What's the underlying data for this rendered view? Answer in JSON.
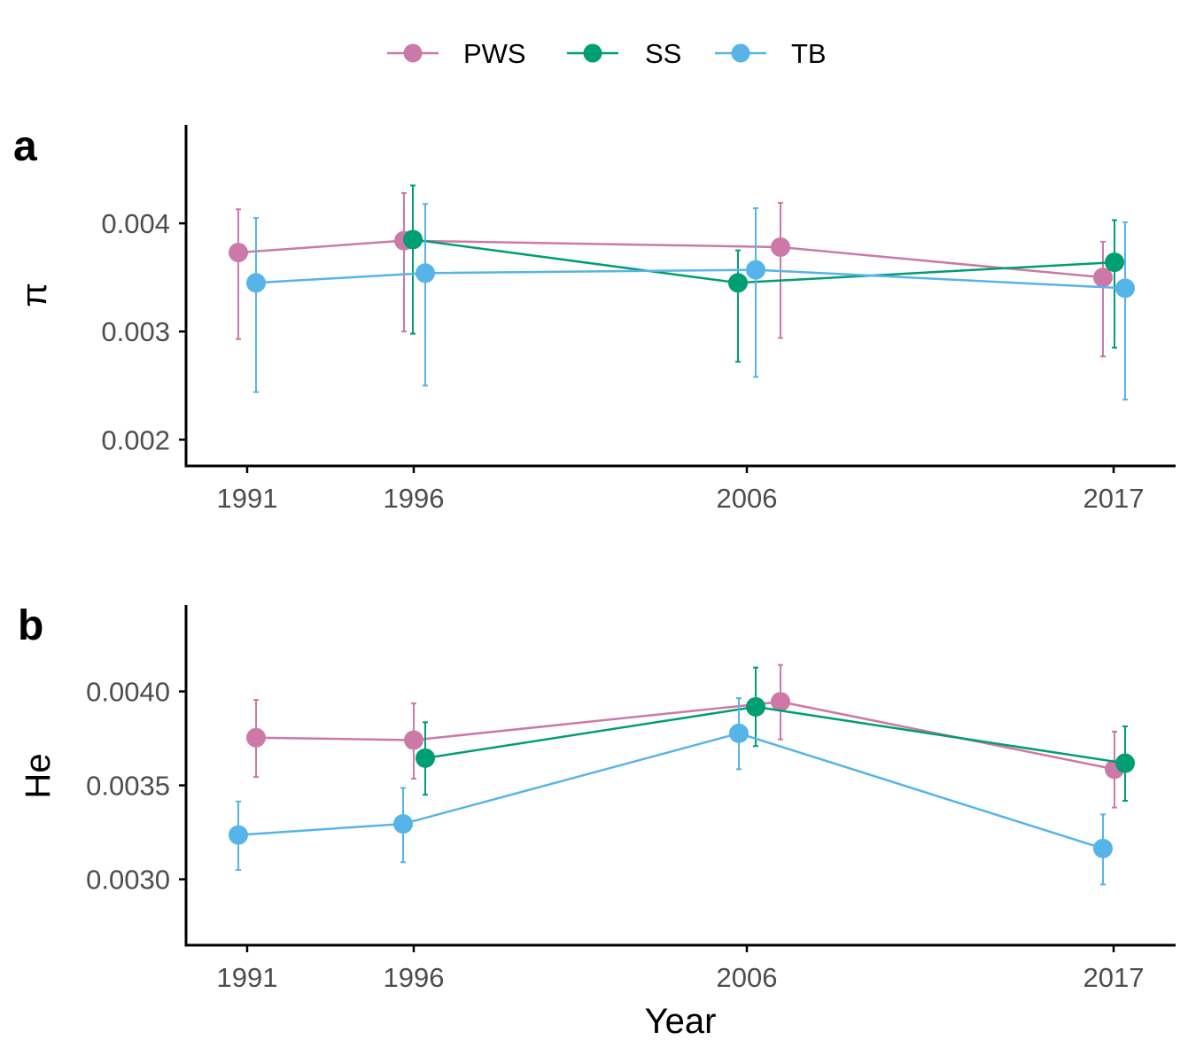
{
  "legend": {
    "items": [
      {
        "name": "PWS",
        "color": "#CC79A7"
      },
      {
        "name": "SS",
        "color": "#009E73"
      },
      {
        "name": "TB",
        "color": "#56B4E9"
      }
    ]
  },
  "chart_data": [
    {
      "panel_label": "a",
      "type": "line",
      "xlabel": "",
      "ylabel": "π",
      "x_ticks": [
        1991,
        1996,
        2006,
        2017
      ],
      "ylim": [
        0.00188,
        0.00491
      ],
      "y_ticks": [
        "0.002",
        "0.003",
        "0.004"
      ],
      "y_tick_values": [
        0.002,
        0.003,
        0.004
      ],
      "series": [
        {
          "name": "PWS",
          "color": "#CC79A7",
          "points": [
            {
              "x": 1991,
              "y": 0.00373,
              "lo": 0.00293,
              "hi": 0.00413
            },
            {
              "x": 1996,
              "y": 0.00384,
              "lo": 0.003,
              "hi": 0.00428
            },
            {
              "x": 2006,
              "y": 0.00378,
              "lo": 0.00294,
              "hi": 0.00419
            },
            {
              "x": 2017,
              "y": 0.0035,
              "lo": 0.00277,
              "hi": 0.00383
            }
          ]
        },
        {
          "name": "SS",
          "color": "#009E73",
          "points": [
            {
              "x": 1996,
              "y": 0.00385,
              "lo": 0.00298,
              "hi": 0.00435
            },
            {
              "x": 2006,
              "y": 0.00345,
              "lo": 0.00272,
              "hi": 0.00375
            },
            {
              "x": 2017,
              "y": 0.00364,
              "lo": 0.00285,
              "hi": 0.00403
            }
          ]
        },
        {
          "name": "TB",
          "color": "#56B4E9",
          "points": [
            {
              "x": 1991,
              "y": 0.00345,
              "lo": 0.00244,
              "hi": 0.00405
            },
            {
              "x": 1996,
              "y": 0.00354,
              "lo": 0.0025,
              "hi": 0.00418
            },
            {
              "x": 2006,
              "y": 0.00357,
              "lo": 0.00258,
              "hi": 0.00414
            },
            {
              "x": 2017,
              "y": 0.0034,
              "lo": 0.00237,
              "hi": 0.00401
            }
          ]
        }
      ]
    },
    {
      "panel_label": "b",
      "type": "line",
      "xlabel": "Year",
      "ylabel": "He",
      "x_ticks": [
        1991,
        1996,
        2006,
        2017
      ],
      "ylim": [
        0.00272,
        0.00446
      ],
      "y_ticks": [
        "0.0030",
        "0.0035",
        "0.0040"
      ],
      "y_tick_values": [
        0.003,
        0.0035,
        0.004
      ],
      "series": [
        {
          "name": "PWS",
          "color": "#CC79A7",
          "points": [
            {
              "x": 1991,
              "y": 0.003754,
              "lo": 0.003545,
              "hi": 0.003955
            },
            {
              "x": 1996,
              "y": 0.003741,
              "lo": 0.003536,
              "hi": 0.003936
            },
            {
              "x": 2006,
              "y": 0.003945,
              "lo": 0.003745,
              "hi": 0.004141
            },
            {
              "x": 2017,
              "y": 0.003586,
              "lo": 0.003382,
              "hi": 0.003786
            }
          ]
        },
        {
          "name": "SS",
          "color": "#009E73",
          "points": [
            {
              "x": 1996,
              "y": 0.003645,
              "lo": 0.00345,
              "hi": 0.003836
            },
            {
              "x": 2006,
              "y": 0.003918,
              "lo": 0.003709,
              "hi": 0.004127
            },
            {
              "x": 2017,
              "y": 0.003618,
              "lo": 0.003418,
              "hi": 0.003814
            }
          ]
        },
        {
          "name": "TB",
          "color": "#56B4E9",
          "points": [
            {
              "x": 1991,
              "y": 0.003236,
              "lo": 0.00305,
              "hi": 0.003414
            },
            {
              "x": 1996,
              "y": 0.003295,
              "lo": 0.003091,
              "hi": 0.003486
            },
            {
              "x": 2006,
              "y": 0.003777,
              "lo": 0.003586,
              "hi": 0.003964
            },
            {
              "x": 2017,
              "y": 0.003164,
              "lo": 0.002973,
              "hi": 0.003345
            }
          ]
        }
      ]
    }
  ]
}
